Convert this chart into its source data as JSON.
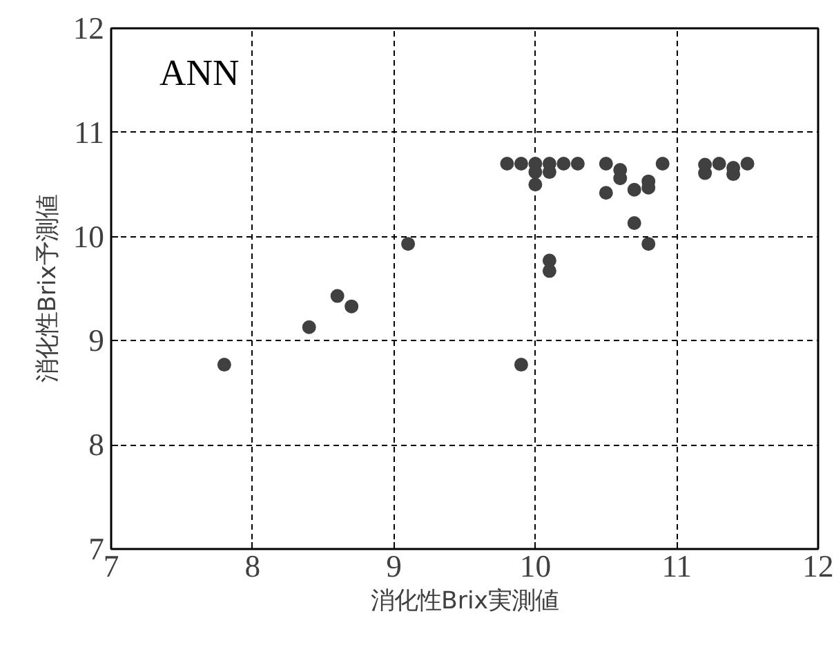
{
  "chart_data": {
    "type": "scatter",
    "xlabel": "消化性Brix実測値",
    "ylabel": "消化性Brix予測値",
    "annotations": [
      "ANN"
    ],
    "x": [
      9.8,
      9.9,
      10.0,
      10.1,
      10.2,
      10.3,
      10.0,
      10.1,
      10.0,
      10.5,
      10.5,
      10.6,
      10.6,
      10.7,
      10.7,
      10.8,
      10.8,
      10.8,
      10.9,
      11.2,
      11.2,
      11.3,
      11.4,
      11.4,
      11.5,
      10.1,
      10.1,
      9.1,
      8.6,
      8.7,
      8.4,
      7.8,
      9.9
    ],
    "series": [
      {
        "color": "#404040",
        "values": [
          10.7,
          10.7,
          10.7,
          10.7,
          10.7,
          10.7,
          10.62,
          10.62,
          10.5,
          10.7,
          10.42,
          10.64,
          10.56,
          10.45,
          10.13,
          10.53,
          10.47,
          9.93,
          10.7,
          10.69,
          10.61,
          10.7,
          10.6,
          10.66,
          10.7,
          9.77,
          9.67,
          9.93,
          9.43,
          9.33,
          9.13,
          8.77,
          8.77
        ]
      }
    ],
    "xlim": [
      7,
      12
    ],
    "ylim": [
      7,
      12
    ],
    "xticks": [
      7,
      8,
      9,
      10,
      11,
      12
    ],
    "yticks": [
      7,
      8,
      9,
      10,
      11,
      12
    ],
    "grid": true,
    "marker": "circle"
  }
}
